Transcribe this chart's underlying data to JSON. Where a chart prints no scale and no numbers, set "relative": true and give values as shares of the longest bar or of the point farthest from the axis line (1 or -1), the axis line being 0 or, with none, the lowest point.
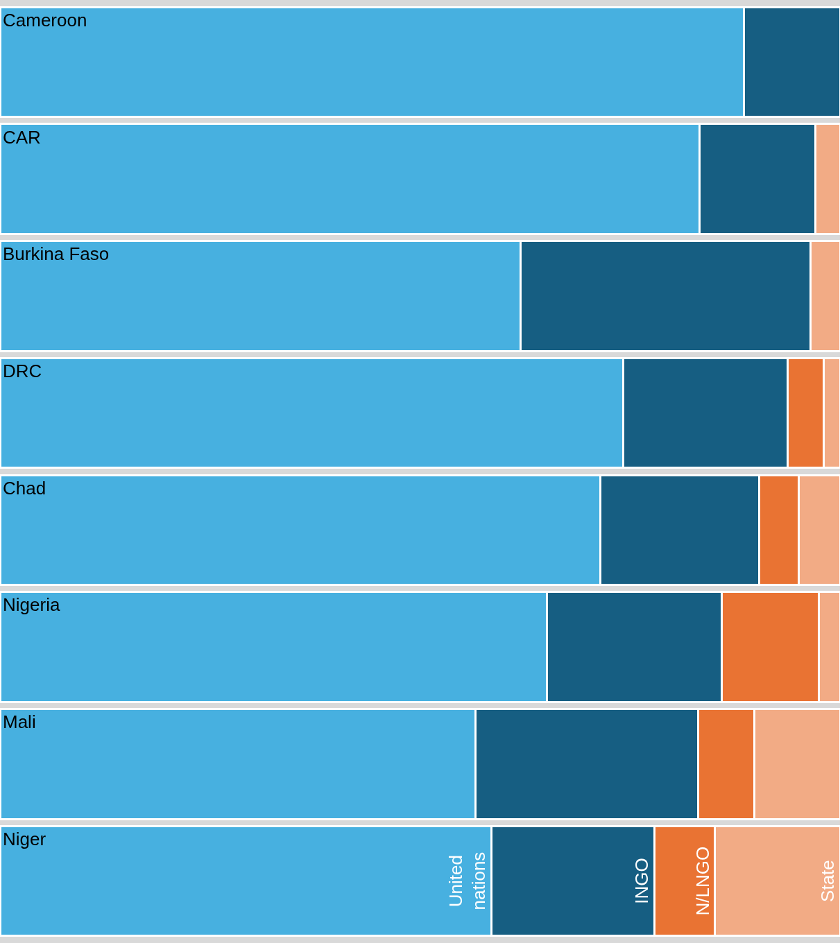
{
  "chart_data": {
    "type": "bar",
    "orientation": "horizontal",
    "stacked": true,
    "relative": true,
    "legend": false,
    "tick_labels": false,
    "categories": [
      "Cameroon",
      "CAR",
      "Burkina Faso",
      "DRC",
      "Chad",
      "Nigeria",
      "Mali",
      "Niger"
    ],
    "series": [
      {
        "name": "United nations",
        "color": "#47b0e0",
        "values": [
          0.886,
          0.833,
          0.62,
          0.742,
          0.715,
          0.651,
          0.566,
          0.585
        ]
      },
      {
        "name": "INGO",
        "color": "#165e82",
        "values": [
          0.114,
          0.138,
          0.345,
          0.196,
          0.189,
          0.208,
          0.265,
          0.194
        ]
      },
      {
        "name": "N/LNGO",
        "color": "#e97333",
        "values": [
          null,
          null,
          null,
          0.043,
          0.047,
          0.116,
          0.067,
          0.072
        ]
      },
      {
        "name": "State",
        "color": "#f2ab85",
        "values": [
          null,
          0.029,
          0.035,
          0.019,
          0.049,
          0.025,
          0.102,
          0.149
        ]
      }
    ]
  }
}
